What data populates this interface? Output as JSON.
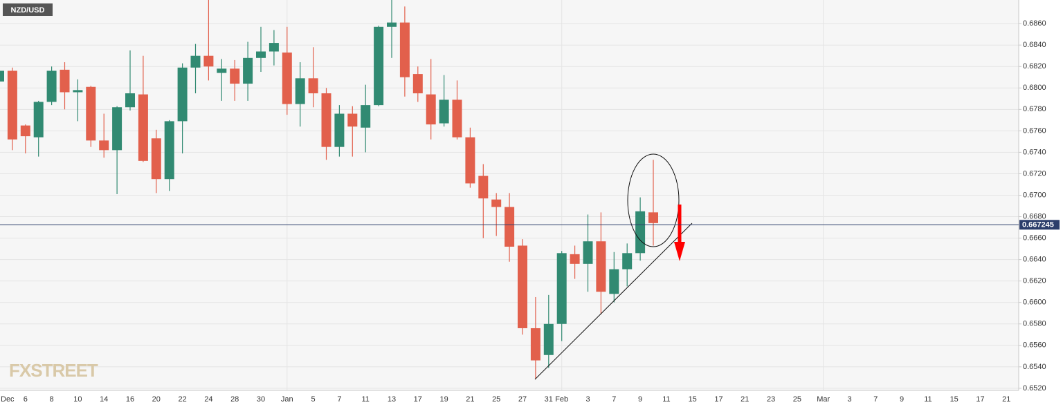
{
  "chart_data": {
    "type": "candlestick",
    "symbol": "NZD/USD",
    "watermark": "FXSTREET",
    "current_price": 0.667245,
    "up_color": "#318a72",
    "down_color": "#e2604c",
    "grid": true,
    "categories": [
      "Dec",
      null,
      "6",
      null,
      "8",
      null,
      "10",
      null,
      "14",
      null,
      "16",
      null,
      "20",
      null,
      "22",
      null,
      "24",
      null,
      "28",
      null,
      "30",
      null,
      "Jan",
      null,
      "5",
      null,
      "7",
      null,
      "11",
      null,
      "13",
      null,
      "17",
      null,
      "19",
      null,
      "21",
      null,
      "25",
      null,
      "27",
      null,
      "31",
      "Feb",
      null,
      "3",
      null,
      "7",
      null,
      "9",
      null,
      "11",
      null,
      "15",
      null,
      "17",
      null,
      "21",
      null,
      "23",
      null,
      "25",
      null,
      "Mar",
      null,
      "3",
      null,
      "7",
      null,
      "9",
      null,
      "11",
      null,
      "15",
      null,
      "17",
      null,
      "21"
    ],
    "open": [
      0.6806,
      0.6816,
      0.6765,
      0.6754,
      0.6787,
      0.6817,
      0.6796,
      0.6801,
      0.6751,
      0.6742,
      0.6782,
      0.6794,
      0.6753,
      0.6715,
      0.6769,
      0.6819,
      0.683,
      0.6814,
      0.6818,
      0.6804,
      0.6828,
      0.6834,
      0.6833,
      0.6785,
      0.6809,
      0.6795,
      0.6745,
      0.6776,
      0.6763,
      0.6784,
      0.6857,
      0.6861,
      0.6813,
      0.6794,
      0.6767,
      0.6789,
      0.6754,
      0.6718,
      0.6696,
      0.6689,
      0.6653,
      0.6576,
      0.6551,
      0.658,
      0.6645,
      0.6636,
      0.6657,
      0.6608,
      0.6631,
      0.6646,
      0.6684,
      null,
      null,
      null,
      null,
      null,
      null,
      null,
      null,
      null,
      null,
      null,
      null,
      null,
      null,
      null,
      null,
      null,
      null,
      null,
      null,
      null,
      null,
      null,
      null,
      null,
      null,
      null
    ],
    "high": [
      0.6832,
      0.6819,
      0.6766,
      0.6788,
      0.682,
      0.6824,
      0.6808,
      0.6802,
      0.6776,
      0.6783,
      0.6835,
      0.683,
      0.6761,
      0.677,
      0.6823,
      0.6841,
      0.6882,
      0.6827,
      0.6826,
      0.6843,
      0.6857,
      0.6854,
      0.6857,
      0.6824,
      0.6838,
      0.68,
      0.6784,
      0.6783,
      0.6803,
      0.6858,
      0.6882,
      0.6876,
      0.682,
      0.6827,
      0.6812,
      0.6807,
      0.6763,
      0.6729,
      0.6702,
      0.6702,
      0.6659,
      0.6605,
      0.6607,
      0.6648,
      0.6653,
      0.6682,
      0.6684,
      0.6647,
      0.6655,
      0.6698,
      0.6733,
      null,
      null,
      null,
      null,
      null,
      null,
      null,
      null,
      null,
      null,
      null,
      null,
      null,
      null,
      null,
      null,
      null,
      null,
      null,
      null,
      null,
      null,
      null,
      null,
      null,
      null,
      null
    ],
    "low": [
      0.6805,
      0.6742,
      0.6739,
      0.6736,
      0.6784,
      0.678,
      0.6769,
      0.6745,
      0.6735,
      0.6701,
      0.6779,
      0.6731,
      0.6702,
      0.6704,
      0.6739,
      0.6795,
      0.6807,
      0.6788,
      0.6788,
      0.6788,
      0.6815,
      0.6821,
      0.6775,
      0.6764,
      0.6782,
      0.6733,
      0.6736,
      0.6736,
      0.674,
      0.6783,
      0.6828,
      0.6792,
      0.6787,
      0.6752,
      0.6764,
      0.6752,
      0.6707,
      0.666,
      0.6662,
      0.6638,
      0.657,
      0.6529,
      0.6539,
      0.6564,
      0.6622,
      0.661,
      0.6589,
      0.66,
      0.6615,
      0.6639,
      0.6653,
      null,
      null,
      null,
      null,
      null,
      null,
      null,
      null,
      null,
      null,
      null,
      null,
      null,
      null,
      null,
      null,
      null,
      null,
      null,
      null,
      null,
      null,
      null,
      null,
      null,
      null,
      null
    ],
    "close": [
      0.6816,
      0.6752,
      0.6755,
      0.6787,
      0.6816,
      0.6796,
      0.6798,
      0.6751,
      0.6742,
      0.6782,
      0.6795,
      0.6732,
      0.6715,
      0.6769,
      0.6819,
      0.683,
      0.682,
      0.6818,
      0.6804,
      0.6828,
      0.6834,
      0.6842,
      0.6785,
      0.6809,
      0.6795,
      0.6745,
      0.6776,
      0.6764,
      0.6784,
      0.6857,
      0.6861,
      0.681,
      0.6795,
      0.6766,
      0.6789,
      0.6754,
      0.6711,
      0.6697,
      0.6689,
      0.6652,
      0.6576,
      0.6546,
      0.658,
      0.6646,
      0.6636,
      0.6657,
      0.661,
      0.6631,
      0.6646,
      0.6685,
      0.6674,
      null,
      null,
      null,
      null,
      null,
      null,
      null,
      null,
      null,
      null,
      null,
      null,
      null,
      null,
      null,
      null,
      null,
      null,
      null,
      null,
      null,
      null,
      null,
      null,
      null,
      null,
      null
    ],
    "ylim": [
      0.6518,
      0.6882
    ],
    "yticks": [
      {
        "value": 0.652,
        "label": "0.6520"
      },
      {
        "value": 0.654,
        "label": "0.6540"
      },
      {
        "value": 0.656,
        "label": "0.6560"
      },
      {
        "value": 0.658,
        "label": "0.6580"
      },
      {
        "value": 0.66,
        "label": "0.6600"
      },
      {
        "value": 0.662,
        "label": "0.6620"
      },
      {
        "value": 0.664,
        "label": "0.6640"
      },
      {
        "value": 0.666,
        "label": "0.6660"
      },
      {
        "value": 0.668,
        "label": "0.6680"
      },
      {
        "value": 0.67,
        "label": "0.6700"
      },
      {
        "value": 0.672,
        "label": "0.6720"
      },
      {
        "value": 0.674,
        "label": "0.6740"
      },
      {
        "value": 0.676,
        "label": "0.6760"
      },
      {
        "value": 0.678,
        "label": "0.6780"
      },
      {
        "value": 0.68,
        "label": "0.6800"
      },
      {
        "value": 0.682,
        "label": "0.6820"
      },
      {
        "value": 0.684,
        "label": "0.6840"
      },
      {
        "value": 0.686,
        "label": "0.6860"
      }
    ]
  }
}
